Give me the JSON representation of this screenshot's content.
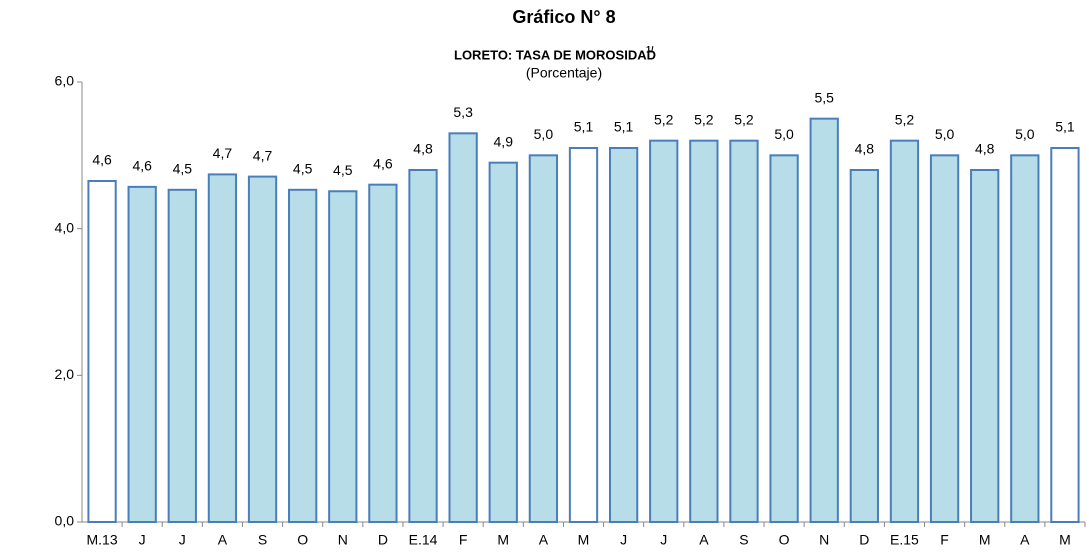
{
  "chart_data": {
    "type": "bar",
    "title": "Gráfico N° 8",
    "subtitle": "LORETO: TASA DE MOROSIDAD",
    "subtitle_note": "1/",
    "unit_label": "(Porcentaje)",
    "categories": [
      "M.13",
      "J",
      "J",
      "A",
      "S",
      "O",
      "N",
      "D",
      "E.14",
      "F",
      "M",
      "A",
      "M",
      "J",
      "J",
      "A",
      "S",
      "O",
      "N",
      "D",
      "E.15",
      "F",
      "M",
      "A",
      "M"
    ],
    "values": [
      4.65,
      4.57,
      4.53,
      4.74,
      4.71,
      4.53,
      4.51,
      4.6,
      4.8,
      5.3,
      4.9,
      5.0,
      5.1,
      5.1,
      5.2,
      5.2,
      5.2,
      5.0,
      5.5,
      4.8,
      5.2,
      5.0,
      4.8,
      5.0,
      5.1
    ],
    "value_labels": [
      "4,6",
      "4,6",
      "4,5",
      "4,7",
      "4,7",
      "4,5",
      "4,5",
      "4,6",
      "4,8",
      "5,3",
      "4,9",
      "5,0",
      "5,1",
      "5,1",
      "5,2",
      "5,2",
      "5,2",
      "5,0",
      "5,5",
      "4,8",
      "5,2",
      "5,0",
      "4,8",
      "5,0",
      "5,1"
    ],
    "colors": [
      "#ffffff",
      "#b7dde8",
      "#b7dde8",
      "#b7dde8",
      "#b7dde8",
      "#b7dde8",
      "#b7dde8",
      "#b7dde8",
      "#b7dde8",
      "#b7dde8",
      "#b7dde8",
      "#b7dde8",
      "#ffffff",
      "#b7dde8",
      "#b7dde8",
      "#b7dde8",
      "#b7dde8",
      "#b7dde8",
      "#b7dde8",
      "#b7dde8",
      "#b7dde8",
      "#b7dde8",
      "#b7dde8",
      "#b7dde8",
      "#ffffff"
    ],
    "edge_color": "#4a7ebb",
    "ylim": [
      0,
      6
    ],
    "yticks": [
      {
        "value": 0,
        "label": "0,0"
      },
      {
        "value": 2,
        "label": "2,0"
      },
      {
        "value": 4,
        "label": "4,0"
      },
      {
        "value": 6,
        "label": "6,0"
      }
    ],
    "grid": false
  }
}
